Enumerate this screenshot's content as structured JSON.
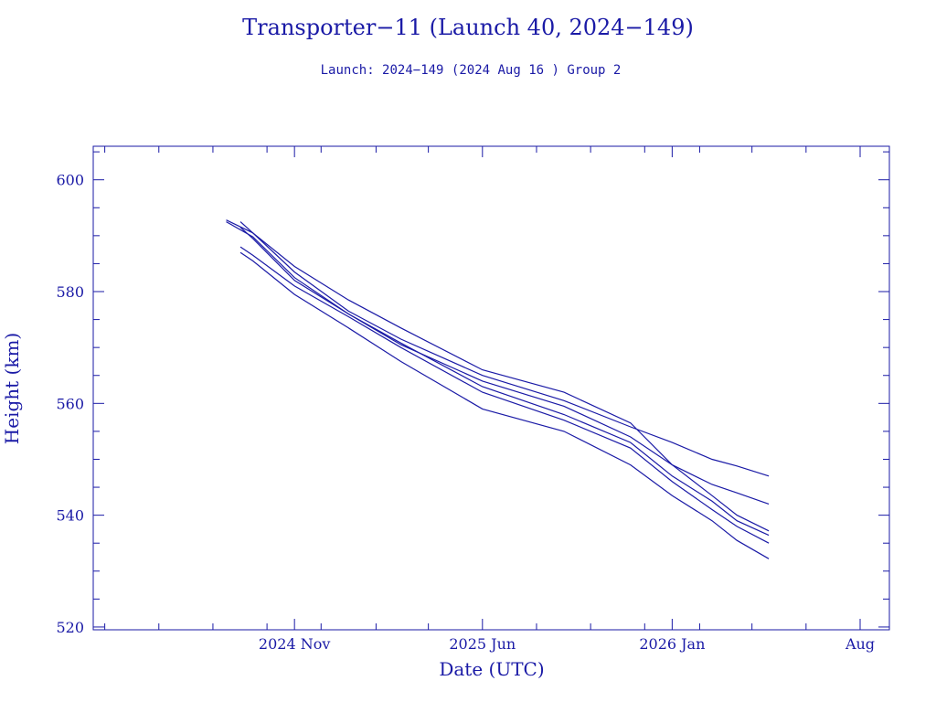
{
  "colors": {
    "ink": "#1a1aa6",
    "background": "#ffffff"
  },
  "chart_data": {
    "type": "line",
    "title": "Transporter−11 (Launch 40, 2024−149)",
    "subtitle": "Launch: 2024−149  (2024 Aug 16 )  Group 2",
    "xlabel": "Date (UTC)",
    "ylabel": "Height (km)",
    "ylim": [
      519.5,
      606
    ],
    "xlim": [
      "2024-03-19",
      "2026-09-03"
    ],
    "y_ticks": [
      520,
      540,
      560,
      580,
      600
    ],
    "y_tick_labels": [
      "520",
      "540",
      "560",
      "580",
      "600"
    ],
    "x_ticks": [
      "2024-11-01",
      "2025-06-01",
      "2026-01-01",
      "2026-08-01"
    ],
    "x_tick_labels": [
      "2024 Nov",
      "2025 Jun",
      "2026 Jan",
      "Aug"
    ],
    "grid": false,
    "legend": "none",
    "series": [
      {
        "x": [
          "2024-08-16",
          "2024-09-15",
          "2024-11-01",
          "2025-01-01",
          "2025-03-01",
          "2025-06-01",
          "2025-09-01",
          "2025-11-15",
          "2026-01-01",
          "2026-02-15",
          "2026-03-15",
          "2026-04-20"
        ],
        "y": [
          592.8,
          590.5,
          583.5,
          576.5,
          571.5,
          565.0,
          560.5,
          555.8,
          553.0,
          550.0,
          548.8,
          547.0
        ]
      },
      {
        "x": [
          "2024-08-16",
          "2024-09-15",
          "2024-11-01",
          "2025-01-01",
          "2025-03-01",
          "2025-06-01",
          "2025-09-01",
          "2025-11-15",
          "2026-01-01",
          "2026-02-15",
          "2026-03-15",
          "2026-04-20"
        ],
        "y": [
          592.5,
          589.8,
          582.5,
          576.0,
          570.5,
          564.0,
          559.5,
          554.0,
          549.0,
          545.5,
          544.0,
          542.0
        ]
      },
      {
        "x": [
          "2024-09-01",
          "2024-09-15",
          "2024-11-01",
          "2025-01-01",
          "2025-03-01",
          "2025-06-01",
          "2025-09-01",
          "2025-11-15",
          "2026-01-01",
          "2026-02-15",
          "2026-03-15",
          "2026-04-20"
        ],
        "y": [
          592.5,
          590.5,
          584.5,
          578.5,
          573.5,
          566.0,
          562.0,
          556.5,
          549.0,
          543.5,
          540.0,
          537.2
        ]
      },
      {
        "x": [
          "2024-09-01",
          "2024-09-15",
          "2024-11-01",
          "2025-01-01",
          "2025-03-01",
          "2025-06-01",
          "2025-09-01",
          "2025-11-15",
          "2026-01-01",
          "2026-02-15",
          "2026-03-15",
          "2026-04-20"
        ],
        "y": [
          591.5,
          589.5,
          582.0,
          576.0,
          570.8,
          563.0,
          558.0,
          553.0,
          547.0,
          542.5,
          539.0,
          536.4
        ]
      },
      {
        "x": [
          "2024-09-01",
          "2024-09-15",
          "2024-11-01",
          "2025-01-01",
          "2025-03-01",
          "2025-06-01",
          "2025-09-01",
          "2025-11-15",
          "2026-01-01",
          "2026-02-15",
          "2026-03-15",
          "2026-04-20"
        ],
        "y": [
          588.0,
          586.5,
          581.0,
          575.5,
          570.0,
          562.0,
          557.0,
          552.0,
          546.0,
          541.0,
          538.0,
          535.0
        ]
      },
      {
        "x": [
          "2024-09-01",
          "2024-09-15",
          "2024-11-01",
          "2025-01-01",
          "2025-03-01",
          "2025-06-01",
          "2025-09-01",
          "2025-11-15",
          "2026-01-01",
          "2026-02-15",
          "2026-03-15",
          "2026-04-20"
        ],
        "y": [
          587.0,
          585.5,
          579.5,
          573.5,
          567.5,
          559.0,
          555.0,
          549.0,
          543.5,
          539.0,
          535.5,
          532.2
        ]
      }
    ]
  }
}
